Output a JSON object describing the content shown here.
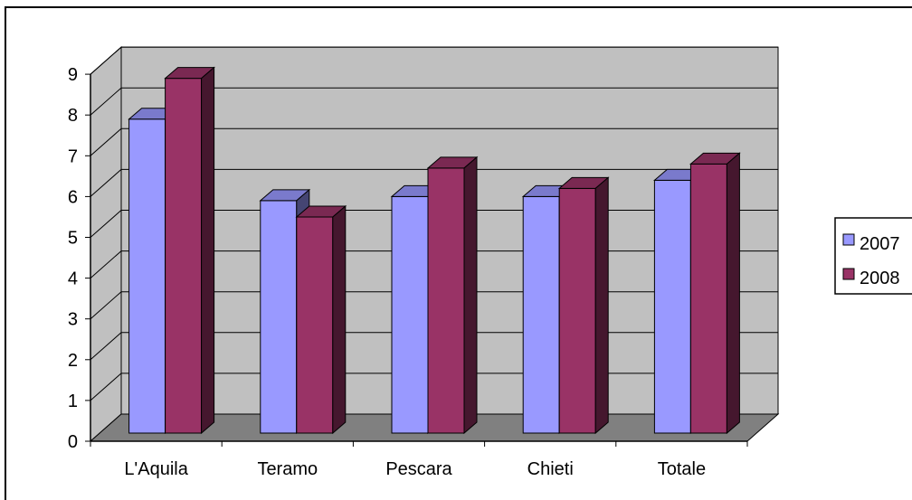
{
  "chart_data": {
    "type": "bar",
    "title": "",
    "xlabel": "",
    "ylabel": "",
    "categories": [
      "L'Aquila",
      "Teramo",
      "Pescara",
      "Chieti",
      "Totale"
    ],
    "series": [
      {
        "name": "2007",
        "values": [
          7.7,
          5.7,
          5.8,
          5.8,
          6.2
        ],
        "color": "#9999ff"
      },
      {
        "name": "2008",
        "values": [
          8.7,
          5.3,
          6.5,
          6.0,
          6.6
        ],
        "color": "#993366"
      }
    ],
    "ylim": [
      0,
      9
    ],
    "yticks": [
      "0",
      "1",
      "2",
      "3",
      "4",
      "5",
      "6",
      "7",
      "8",
      "9"
    ],
    "grid": true,
    "style": "3d-clustered-column",
    "wall_color": "#c0c0c0",
    "floor_color": "#808080",
    "legend_position": "right"
  }
}
